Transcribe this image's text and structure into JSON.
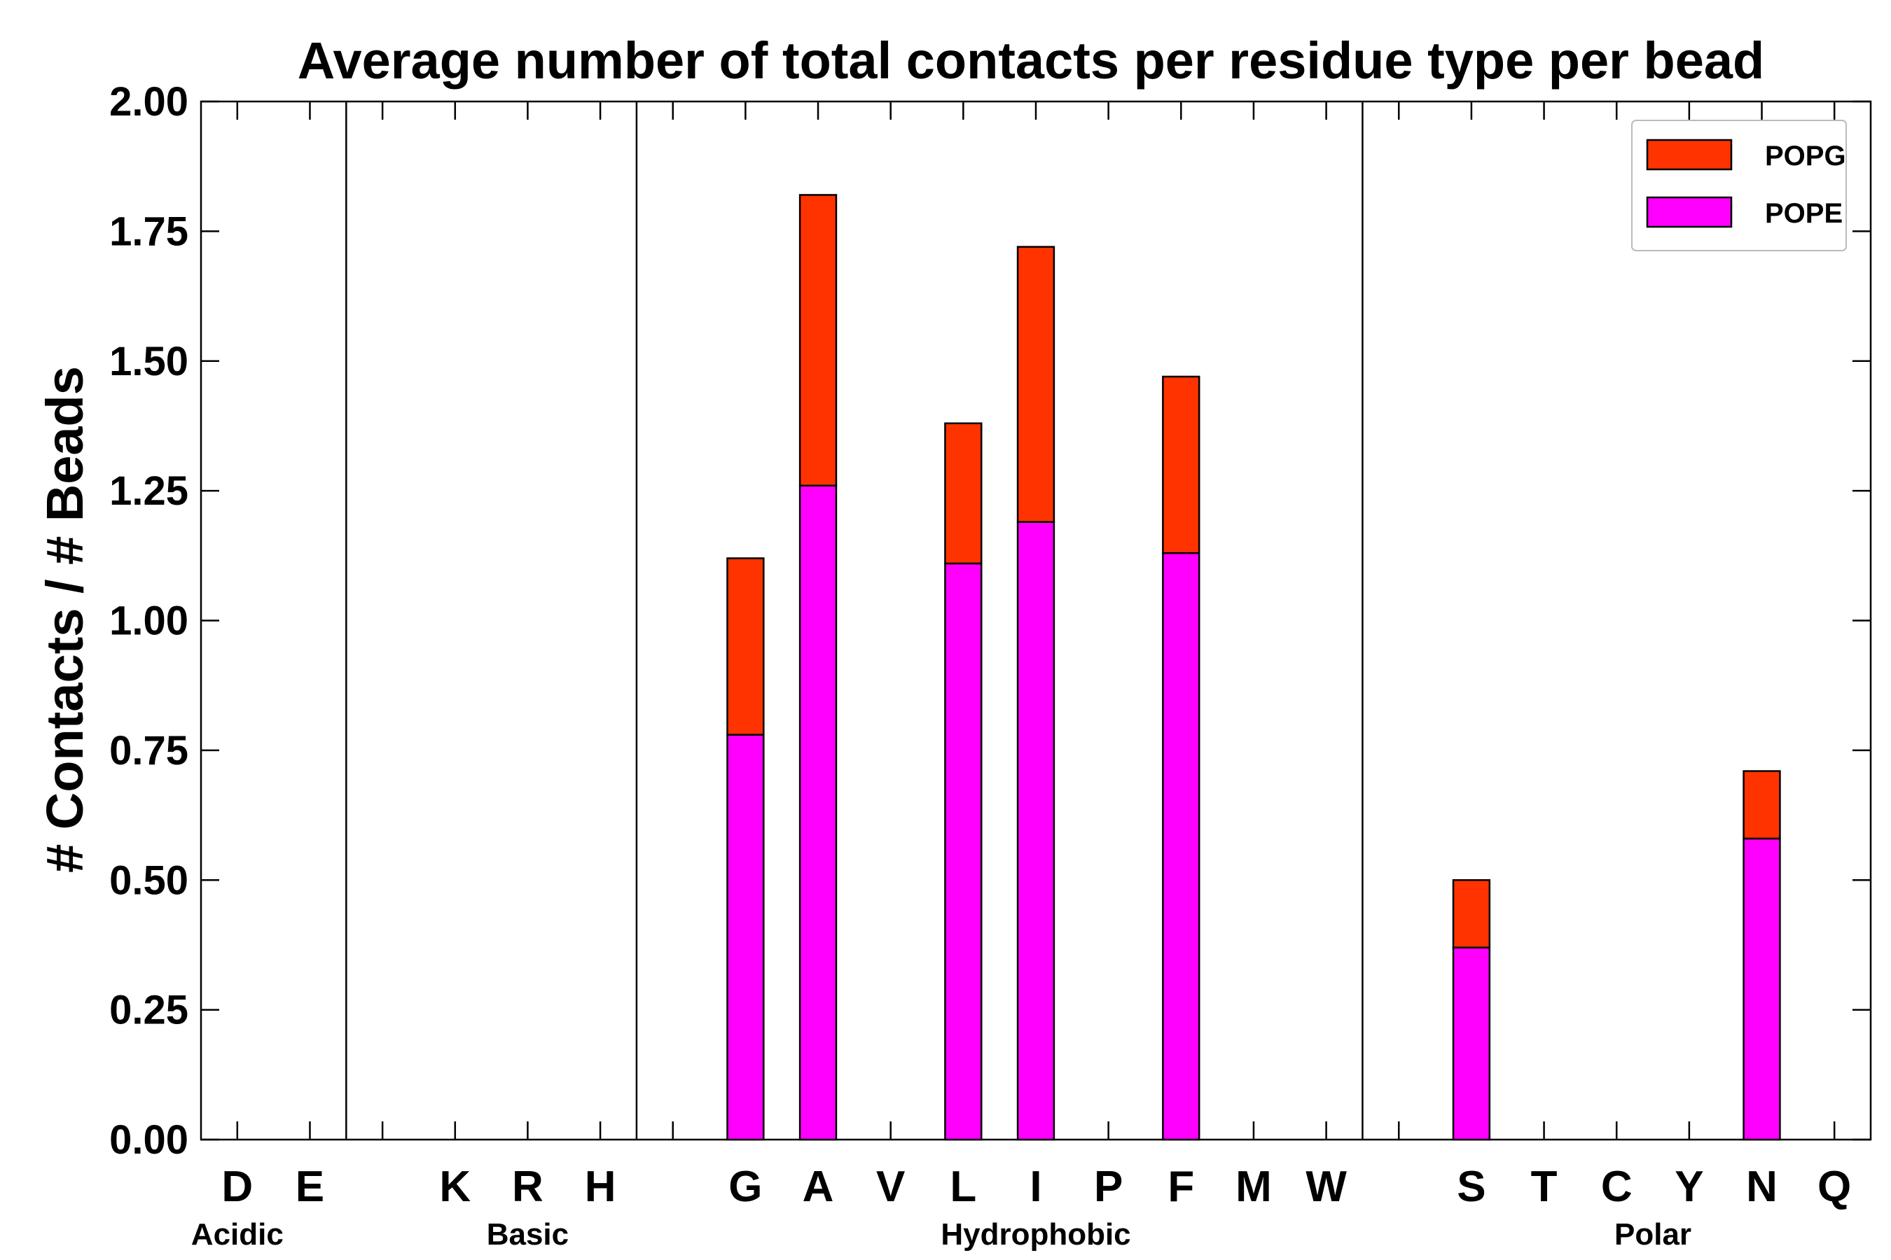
{
  "chart_data": {
    "type": "bar",
    "stacked": true,
    "title": "Average number of total contacts per residue type per bead",
    "xlabel": "",
    "ylabel": "# Contacts / # Beads",
    "ylim": [
      0,
      2.0
    ],
    "yticks": [
      "0.00",
      "0.25",
      "0.50",
      "0.75",
      "1.00",
      "1.25",
      "1.50",
      "1.75",
      "2.00"
    ],
    "grid": false,
    "legend_position": "top-right",
    "slots": [
      "D",
      "E",
      "",
      "K",
      "R",
      "H",
      "",
      "G",
      "A",
      "V",
      "L",
      "I",
      "P",
      "F",
      "M",
      "W",
      "",
      "S",
      "T",
      "C",
      "Y",
      "N",
      "Q"
    ],
    "series": [
      {
        "name": "POPE",
        "color": "#ff00ff",
        "values": [
          0,
          0,
          0,
          0,
          0,
          0,
          0,
          0.78,
          1.26,
          0,
          1.11,
          1.19,
          0,
          1.13,
          0,
          0,
          0,
          0.37,
          0,
          0,
          0,
          0.58,
          0
        ]
      },
      {
        "name": "POPG",
        "color": "#ff3300",
        "values": [
          0,
          0,
          0,
          0,
          0,
          0,
          0,
          0.34,
          0.56,
          0,
          0.27,
          0.53,
          0,
          0.34,
          0,
          0,
          0,
          0.13,
          0,
          0,
          0,
          0.13,
          0
        ]
      }
    ],
    "legend_entries": [
      "POPG",
      "POPE"
    ],
    "groups": [
      {
        "label": "Acidic",
        "center_slot": 0
      },
      {
        "label": "Basic",
        "center_slot": 4
      },
      {
        "label": "Hydrophobic",
        "center_slot": 11
      },
      {
        "label": "Polar",
        "center_slot": 19.5
      }
    ],
    "separators_after_slot": [
      1.5,
      5.5,
      15.5
    ]
  }
}
